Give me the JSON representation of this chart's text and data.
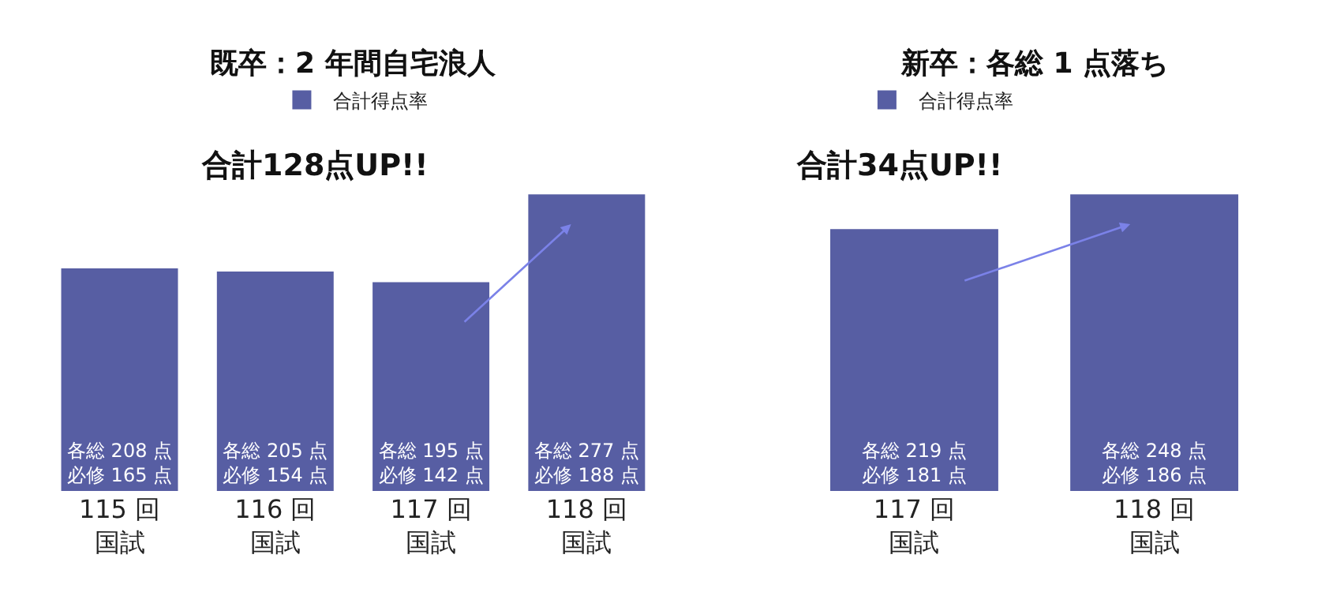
{
  "chart_data": [
    {
      "type": "bar",
      "title": "既卒：2 年間自宅浪人",
      "legend": "top",
      "annotations": [
        "合計128点UP!!"
      ],
      "categories": [
        "115 回国試",
        "116 回国試",
        "117 回国試",
        "118 回国試"
      ],
      "series": [
        {
          "name": "合計得点率",
          "color": "#575ea3",
          "values": [
            208,
            205,
            195,
            277
          ],
          "value_labels": [
            "各総 208 点必修 165 点",
            "各総 205 点必修 154 点",
            "各総 195 点必修 142 点",
            "各総 277 点必修 188 点"
          ]
        }
      ]
    },
    {
      "type": "bar",
      "title": "新卒：各総 1 点落ち",
      "legend": "top left",
      "annotations": [
        "合計34点UP!!"
      ],
      "categories": [
        "117 回国試",
        "118 回国試"
      ],
      "series": [
        {
          "name": "合計得点率",
          "color": "#575ea3",
          "values": [
            219,
            248
          ],
          "value_labels": [
            "各総 219 点必修 181 点",
            "各総 248 点必修 186 点"
          ]
        }
      ]
    }
  ]
}
